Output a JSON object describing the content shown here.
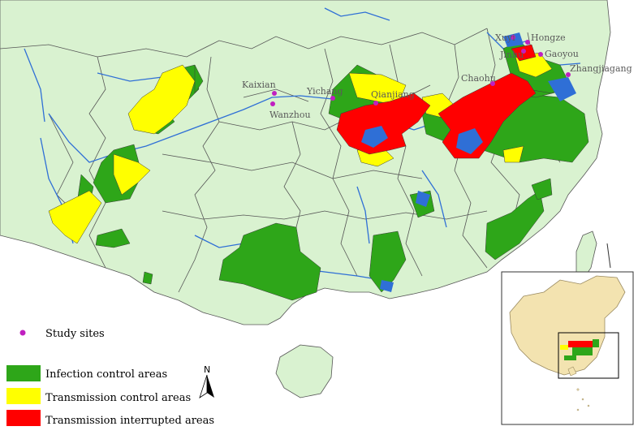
{
  "colors": {
    "land": "#d9f2d0",
    "sea": "#ffffff",
    "boundary": "#555555",
    "river": "#2f6fd6",
    "infection_control": "#2ea619",
    "transmission_control": "#ffff00",
    "transmission_interrupted": "#ff0000",
    "study_site": "#c020c0"
  },
  "study_sites": [
    {
      "label": "Kaixian"
    },
    {
      "label": "Wanzhou"
    },
    {
      "label": "Yichang"
    },
    {
      "label": "Qianjiang"
    },
    {
      "label": "Chaohu"
    },
    {
      "label": "Xuyi"
    },
    {
      "label": "Hongze"
    },
    {
      "label": "Jinhu"
    },
    {
      "label": "Gaoyou"
    },
    {
      "label": "Zhangjiagang"
    }
  ],
  "legend": {
    "study_sites": "Study sites",
    "infection_control": "Infection control areas",
    "transmission_control": "Transmission control areas",
    "transmission_interrupted": "Transmission interrupted areas"
  },
  "north_arrow": {
    "label": "N",
    "icon": "north-arrow-icon"
  },
  "inset": {
    "description_icon": "china-locator-map-icon"
  }
}
